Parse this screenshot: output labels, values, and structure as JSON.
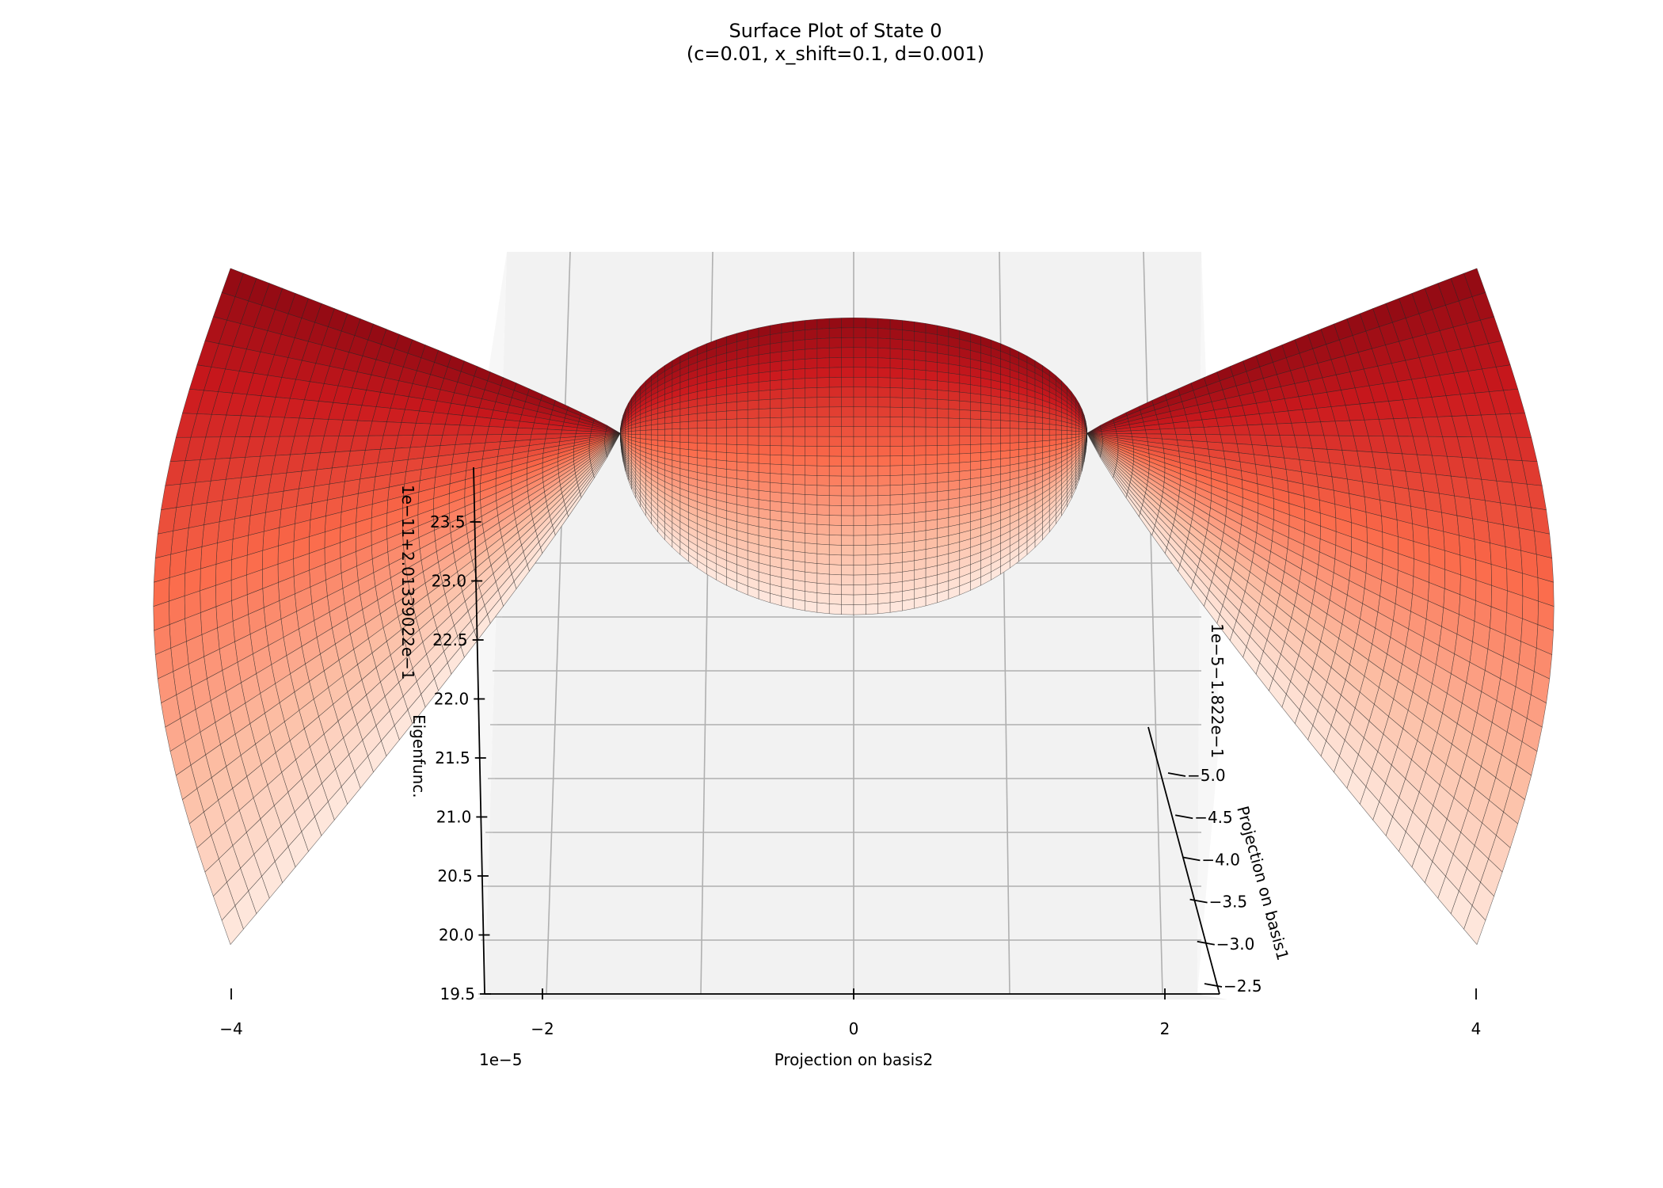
{
  "chart_data": {
    "type": "surface",
    "title": "Surface Plot of State 0",
    "subtitle": "(c=0.01, x_shift=0.1, d=0.001)",
    "xlabel": "Projection on basis2",
    "ylabel": "Projection on basis1",
    "zlabel": "Eigenfunc.",
    "x_offset_text": "1e−5",
    "y_offset_text": "1e−5−1.822e−1",
    "z_offset_text": "1e−11+2.0133902 2e−1",
    "x_ticks": [
      "−4",
      "−2",
      "0",
      "2",
      "4"
    ],
    "x_tick_values": [
      -4,
      -2,
      0,
      2,
      4
    ],
    "y_ticks": [
      "−5.0",
      "−4.5",
      "−4.0",
      "−3.5",
      "−3.0",
      "−2.5"
    ],
    "y_tick_values": [
      -5.0,
      -4.5,
      -4.0,
      -3.5,
      -3.0,
      -2.5
    ],
    "z_ticks": [
      "19.5",
      "20.0",
      "20.5",
      "21.0",
      "21.5",
      "22.0",
      "22.5",
      "23.0",
      "23.5"
    ],
    "z_tick_values": [
      19.5,
      20.0,
      20.5,
      21.0,
      21.5,
      22.0,
      22.5,
      23.0,
      23.5
    ],
    "xlim": [
      -4.7,
      4.7
    ],
    "zlim": [
      19.5,
      24.0
    ],
    "surface": {
      "shape": "radial",
      "center": 0,
      "lobes": [
        {
          "x": -3.6,
          "z_min": 19.8,
          "z_max": 23.9
        },
        {
          "x": 3.6,
          "z_min": 19.8,
          "z_max": 23.9
        }
      ],
      "center_lobe": {
        "x": 0,
        "z_min": 21.8,
        "z_max": 23.6
      },
      "pinch_points": [
        {
          "x": -1.5,
          "z": 22.9
        },
        {
          "x": 1.5,
          "z": 22.9
        }
      ]
    },
    "colormap": "Reds",
    "grid": true
  }
}
